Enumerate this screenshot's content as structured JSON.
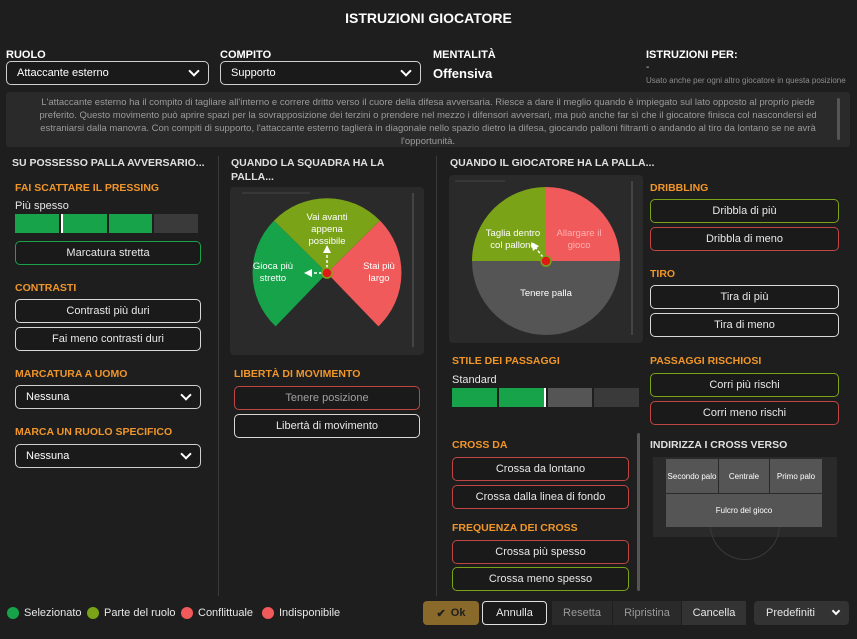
{
  "title": "ISTRUZIONI GIOCATORE",
  "header": {
    "role_label": "RUOLO",
    "role_value": "Attaccante esterno",
    "duty_label": "COMPITO",
    "duty_value": "Supporto",
    "mentality_label": "MENTALITÀ",
    "mentality_value": "Offensiva",
    "instructions_for_label": "ISTRUZIONI PER:",
    "instructions_for_value": "-",
    "instructions_for_note": "Usato anche per ogni altro giocatore in questa posizione"
  },
  "description": "L'attaccante esterno ha il compito di tagliare all'interno e correre dritto verso il cuore della difesa avversaria. Riesce a dare il meglio quando è impiegato sul lato opposto al proprio piede preferito. Questo movimento può aprire spazi per la sovrapposizione dei terzini o prendere nel mezzo i difensori avversari, ma può anche far sì che il giocatore finisca col nascondersi ed estraniarsi dalla manovra. Con compiti di supporto, l'attaccante esterno taglierà in diagonale nello spazio dietro la difesa, giocando palloni filtranti o andando al tiro da lontano se ne avrà l'opportunità.",
  "col1": {
    "heading": "SU POSSESSO PALLA AVVERSARIO...",
    "pressing": {
      "label": "FAI SCATTARE IL PRESSING",
      "level_label": "Più spesso",
      "level": 3,
      "steps": 4,
      "button": "Marcatura stretta"
    },
    "tackling": {
      "label": "CONTRASTI",
      "b1": "Contrasti più duri",
      "b2": "Fai meno contrasti duri"
    },
    "man_marking": {
      "label": "MARCATURA A UOMO",
      "value": "Nessuna"
    },
    "mark_position": {
      "label": "MARCA UN RUOLO SPECIFICO",
      "value": "Nessuna"
    }
  },
  "col2": {
    "heading_line1": "QUANDO LA SQUADRA HA LA",
    "heading_line2": "PALLA...",
    "wheel": {
      "top": "Vai avanti appena possibile",
      "left": "Gioca più stretto",
      "right": "Stai più largo"
    },
    "freedom": {
      "label": "LIBERTÀ DI MOVIMENTO",
      "b1": "Tenere posizione",
      "b2": "Libertà di movimento"
    }
  },
  "col3": {
    "heading": "QUANDO IL GIOCATORE HA LA PALLA...",
    "wheel": {
      "left": "Taglia dentro col pallone",
      "right": "Allargare il gioco",
      "bottom": "Tenere palla"
    },
    "passing": {
      "label": "STILE DEI PASSAGGI",
      "level_label": "Standard",
      "level": 2,
      "steps": 4
    },
    "cross_from": {
      "label": "CROSS DA",
      "b1": "Crossa da lontano",
      "b2": "Crossa dalla linea di fondo"
    },
    "cross_freq": {
      "label": "FREQUENZA DEI CROSS",
      "b1": "Crossa più spesso",
      "b2": "Crossa meno spesso"
    }
  },
  "col4": {
    "dribbling": {
      "label": "DRIBBLING",
      "b1": "Dribbla di più",
      "b2": "Dribbla di meno"
    },
    "shooting": {
      "label": "TIRO",
      "b1": "Tira di più",
      "b2": "Tira di meno"
    },
    "risky": {
      "label": "PASSAGGI RISCHIOSI",
      "b1": "Corri più rischi",
      "b2": "Corri meno rischi"
    },
    "cross_target": {
      "label": "INDIRIZZA I CROSS VERSO",
      "near": "Secondo palo",
      "centre": "Centrale",
      "far": "Primo palo",
      "target": "Fulcro del gioco"
    }
  },
  "legend": {
    "selected": "Selezionato",
    "role": "Parte del ruolo",
    "conflict": "Conflittuale",
    "unavailable": "Indisponibile"
  },
  "footer": {
    "ok": "Ok",
    "cancel_annulla": "Annulla",
    "reset": "Resetta",
    "restore": "Ripristina",
    "cancel": "Cancella",
    "presets": "Predefiniti"
  },
  "colors": {
    "green": "#16a34a",
    "olive": "#7aa318",
    "red": "#f05a5a",
    "grey": "#555555",
    "orange": "#f0962a"
  }
}
